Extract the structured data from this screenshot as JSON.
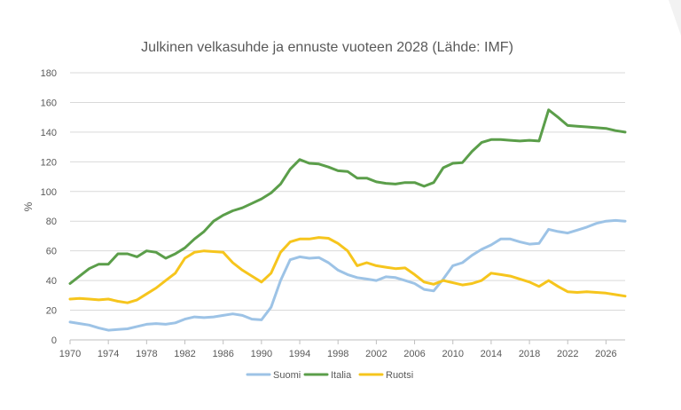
{
  "chart_data": {
    "type": "line",
    "title": "Julkinen velkasuhde ja ennuste vuoteen 2028 (Lähde: IMF)",
    "xlabel": "",
    "ylabel": "%",
    "xlim": [
      1970,
      2028
    ],
    "ylim": [
      0,
      180
    ],
    "yticks": [
      0,
      20,
      40,
      60,
      80,
      100,
      120,
      140,
      160,
      180
    ],
    "xticks": [
      1970,
      1974,
      1978,
      1982,
      1986,
      1990,
      1994,
      1998,
      2002,
      2006,
      2010,
      2014,
      2018,
      2022,
      2026
    ],
    "grid": true,
    "legend_position": "bottom",
    "x": [
      1970,
      1971,
      1972,
      1973,
      1974,
      1975,
      1976,
      1977,
      1978,
      1979,
      1980,
      1981,
      1982,
      1983,
      1984,
      1985,
      1986,
      1987,
      1988,
      1989,
      1990,
      1991,
      1992,
      1993,
      1994,
      1995,
      1996,
      1997,
      1998,
      1999,
      2000,
      2001,
      2002,
      2003,
      2004,
      2005,
      2006,
      2007,
      2008,
      2009,
      2010,
      2011,
      2012,
      2013,
      2014,
      2015,
      2016,
      2017,
      2018,
      2019,
      2020,
      2021,
      2022,
      2023,
      2024,
      2025,
      2026,
      2027,
      2028
    ],
    "series": [
      {
        "name": "Suomi",
        "color": "#9dc3e6",
        "values": [
          12,
          11,
          10,
          8,
          6.5,
          7,
          7.5,
          9,
          10.5,
          11,
          10.5,
          11.5,
          14,
          15.5,
          15,
          15.5,
          16.5,
          17.5,
          16.5,
          14,
          13.5,
          22,
          40,
          54,
          56,
          55,
          55.5,
          52,
          47,
          44,
          42,
          41,
          40,
          42.5,
          42,
          40,
          38,
          34,
          33,
          41,
          50,
          52,
          57,
          61,
          64,
          68,
          68,
          66,
          64.5,
          65,
          74.5,
          73,
          72,
          74,
          76,
          78.5,
          80,
          80.5,
          80
        ]
      },
      {
        "name": "Italia",
        "color": "#5b9e4a",
        "values": [
          38,
          43,
          48,
          51,
          51,
          58,
          58,
          56,
          60,
          59,
          55,
          58,
          62,
          68,
          73,
          80,
          84,
          87,
          89,
          92,
          95,
          99,
          105,
          115,
          121.5,
          119,
          118.5,
          116.5,
          114,
          113.5,
          109,
          109,
          106.5,
          105.5,
          105,
          106,
          106,
          103.5,
          106,
          116,
          119,
          119.5,
          127,
          133,
          135,
          135,
          134.5,
          134,
          134.5,
          134,
          155,
          150,
          144.5,
          144,
          143.5,
          143,
          142.5,
          141,
          140
        ]
      },
      {
        "name": "Ruotsi",
        "color": "#f6c51d",
        "values": [
          27.5,
          28,
          27.5,
          27,
          27.5,
          26,
          25,
          27,
          31,
          35,
          40,
          45,
          55,
          59,
          60,
          59.5,
          59,
          52,
          47,
          43,
          39,
          45,
          59,
          66,
          68,
          68,
          69,
          68.5,
          65,
          60,
          50,
          52,
          50,
          49,
          48,
          48.5,
          44,
          39,
          37.5,
          40,
          38.5,
          37,
          38,
          40,
          45,
          44,
          43,
          41,
          39,
          36,
          40,
          36,
          32.5,
          32,
          32.5,
          32,
          31.5,
          30.5,
          29.5
        ]
      }
    ]
  }
}
